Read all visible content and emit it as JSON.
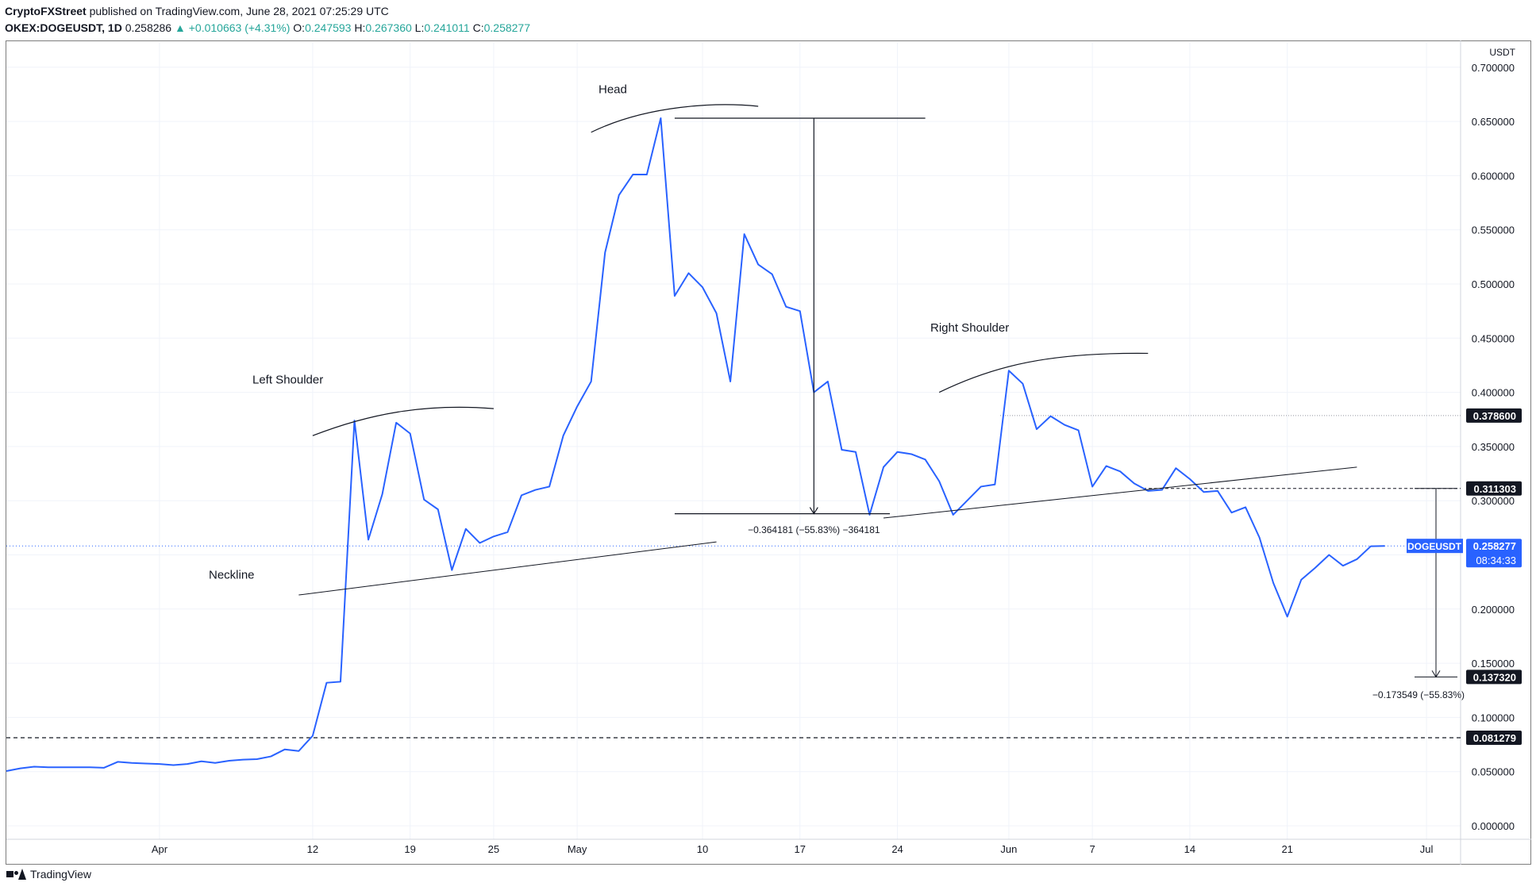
{
  "header": {
    "publisher": "CryptoFXStreet",
    "published_text": "published on TradingView.com, June 28, 2021 07:25:29 UTC",
    "symbol_line": "OKEX:DOGEUSDT, 1D",
    "last": "0.258286",
    "change": "▲ +0.010663 (+4.31%)",
    "o_label": "O:",
    "o_value": "0.247593",
    "h_label": "H:",
    "h_value": "0.267360",
    "l_label": "L:",
    "l_value": "0.241011",
    "c_label": "C:",
    "c_value": "0.258277"
  },
  "footer": {
    "brand": "TradingView"
  },
  "colors": {
    "line": "#2962ff",
    "annotation": "#131722",
    "badge": "#131722",
    "price_badge": "#2962ff"
  },
  "chart_data": {
    "type": "line",
    "series": [
      {
        "name": "DOGEUSDT",
        "x": [
          "2021-03-21",
          "2021-03-22",
          "2021-03-23",
          "2021-03-24",
          "2021-03-25",
          "2021-03-26",
          "2021-03-27",
          "2021-03-28",
          "2021-03-29",
          "2021-03-30",
          "2021-03-31",
          "2021-04-01",
          "2021-04-02",
          "2021-04-03",
          "2021-04-04",
          "2021-04-05",
          "2021-04-06",
          "2021-04-07",
          "2021-04-08",
          "2021-04-09",
          "2021-04-10",
          "2021-04-11",
          "2021-04-12",
          "2021-04-13",
          "2021-04-14",
          "2021-04-15",
          "2021-04-16",
          "2021-04-17",
          "2021-04-18",
          "2021-04-19",
          "2021-04-20",
          "2021-04-21",
          "2021-04-22",
          "2021-04-23",
          "2021-04-24",
          "2021-04-25",
          "2021-04-26",
          "2021-04-27",
          "2021-04-28",
          "2021-04-29",
          "2021-04-30",
          "2021-05-01",
          "2021-05-02",
          "2021-05-03",
          "2021-05-04",
          "2021-05-05",
          "2021-05-06",
          "2021-05-07",
          "2021-05-08",
          "2021-05-09",
          "2021-05-10",
          "2021-05-11",
          "2021-05-12",
          "2021-05-13",
          "2021-05-14",
          "2021-05-15",
          "2021-05-16",
          "2021-05-17",
          "2021-05-18",
          "2021-05-19",
          "2021-05-20",
          "2021-05-21",
          "2021-05-22",
          "2021-05-23",
          "2021-05-24",
          "2021-05-25",
          "2021-05-26",
          "2021-05-27",
          "2021-05-28",
          "2021-05-29",
          "2021-05-30",
          "2021-05-31",
          "2021-06-01",
          "2021-06-02",
          "2021-06-03",
          "2021-06-04",
          "2021-06-05",
          "2021-06-06",
          "2021-06-07",
          "2021-06-08",
          "2021-06-09",
          "2021-06-10",
          "2021-06-11",
          "2021-06-12",
          "2021-06-13",
          "2021-06-14",
          "2021-06-15",
          "2021-06-16",
          "2021-06-17",
          "2021-06-18",
          "2021-06-19",
          "2021-06-20",
          "2021-06-21",
          "2021-06-22",
          "2021-06-23",
          "2021-06-24",
          "2021-06-25",
          "2021-06-26",
          "2021-06-27",
          "2021-06-28"
        ],
        "values": [
          0.0505,
          0.053,
          0.0545,
          0.054,
          0.054,
          0.054,
          0.054,
          0.0535,
          0.059,
          0.058,
          0.0575,
          0.057,
          0.056,
          0.057,
          0.0595,
          0.058,
          0.06,
          0.061,
          0.0615,
          0.064,
          0.0705,
          0.069,
          0.083,
          0.132,
          0.133,
          0.374,
          0.264,
          0.306,
          0.372,
          0.362,
          0.301,
          0.292,
          0.236,
          0.274,
          0.261,
          0.267,
          0.271,
          0.305,
          0.31,
          0.313,
          0.36,
          0.387,
          0.41,
          0.529,
          0.582,
          0.601,
          0.601,
          0.653,
          0.489,
          0.51,
          0.497,
          0.473,
          0.41,
          0.546,
          0.518,
          0.509,
          0.479,
          0.475,
          0.4,
          0.41,
          0.347,
          0.345,
          0.287,
          0.331,
          0.345,
          0.343,
          0.338,
          0.318,
          0.287,
          0.3,
          0.313,
          0.315,
          0.42,
          0.408,
          0.366,
          0.378,
          0.37,
          0.365,
          0.313,
          0.332,
          0.327,
          0.316,
          0.309,
          0.31,
          0.33,
          0.32,
          0.308,
          0.309,
          0.289,
          0.294,
          0.266,
          0.224,
          0.193,
          0.227,
          0.238,
          0.25,
          0.24,
          0.246,
          0.258,
          0.258277
        ]
      }
    ],
    "x_ticks": [
      "Apr",
      "12",
      "19",
      "25",
      "May",
      "10",
      "17",
      "24",
      "Jun",
      "7",
      "14",
      "21",
      "Jul"
    ],
    "y_ticks": [
      "0.700000",
      "0.650000",
      "0.600000",
      "0.550000",
      "0.500000",
      "0.450000",
      "0.400000",
      "0.350000",
      "0.300000",
      "0.250000",
      "0.200000",
      "0.150000",
      "0.100000",
      "0.050000",
      "0.000000"
    ],
    "y_tick_values": [
      0.7,
      0.65,
      0.6,
      0.55,
      0.5,
      0.45,
      0.4,
      0.35,
      0.3,
      0.25,
      0.2,
      0.15,
      0.1,
      0.05,
      0.0
    ],
    "ylim": [
      0,
      0.7
    ],
    "y_unit": "USDT",
    "annotations": {
      "head": "Head",
      "left_shoulder": "Left Shoulder",
      "right_shoulder": "Right Shoulder",
      "neckline": "Neckline",
      "measure_head": "−0.364181 (−55.83%) −364181",
      "measure_target": "−0.173549 (−55.83%)"
    },
    "price_badges": [
      {
        "id": "level_0378600",
        "value": 0.3786,
        "label": "0.378600"
      },
      {
        "id": "level_0311303",
        "value": 0.311303,
        "label": "0.311303"
      },
      {
        "id": "level_0137320",
        "value": 0.13732,
        "label": "0.137320"
      },
      {
        "id": "level_0081279",
        "value": 0.081279,
        "label": "0.081279"
      }
    ],
    "last_price": {
      "symbol": "DOGEUSDT",
      "value": 0.258277,
      "label": "0.258277",
      "countdown": "08:34:33"
    },
    "grid": true
  }
}
